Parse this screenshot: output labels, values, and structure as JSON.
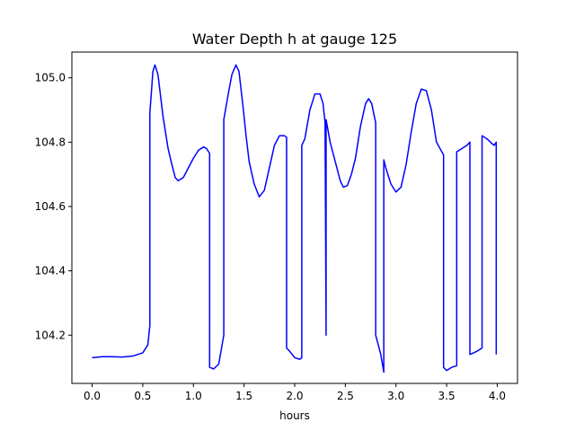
{
  "chart_data": {
    "type": "line",
    "title": "Water Depth h at gauge 125",
    "xlabel": "hours",
    "ylabel": "",
    "xlim": [
      -0.2,
      4.2
    ],
    "ylim": [
      104.05,
      105.08
    ],
    "grid": false,
    "x_ticks": [
      0.0,
      0.5,
      1.0,
      1.5,
      2.0,
      2.5,
      3.0,
      3.5,
      4.0
    ],
    "x_tick_labels": [
      "0.0",
      "0.5",
      "1.0",
      "1.5",
      "2.0",
      "2.5",
      "3.0",
      "3.5",
      "4.0"
    ],
    "y_ticks": [
      104.2,
      104.4,
      104.6,
      104.8,
      105.0
    ],
    "y_tick_labels": [
      "104.2",
      "104.4",
      "104.6",
      "104.8",
      "105.0"
    ],
    "series": [
      {
        "color": "#0000ff",
        "points": [
          [
            0.0,
            104.13
          ],
          [
            0.1,
            104.133
          ],
          [
            0.2,
            104.133
          ],
          [
            0.3,
            104.132
          ],
          [
            0.4,
            104.135
          ],
          [
            0.5,
            104.145
          ],
          [
            0.55,
            104.17
          ],
          [
            0.57,
            104.23
          ],
          [
            0.57,
            104.89
          ],
          [
            0.6,
            105.02
          ],
          [
            0.62,
            105.04
          ],
          [
            0.65,
            105.01
          ],
          [
            0.7,
            104.88
          ],
          [
            0.75,
            104.78
          ],
          [
            0.78,
            104.74
          ],
          [
            0.82,
            104.69
          ],
          [
            0.85,
            104.68
          ],
          [
            0.9,
            104.69
          ],
          [
            0.95,
            104.72
          ],
          [
            1.0,
            104.75
          ],
          [
            1.05,
            104.775
          ],
          [
            1.1,
            104.785
          ],
          [
            1.13,
            104.78
          ],
          [
            1.16,
            104.765
          ],
          [
            1.16,
            104.1
          ],
          [
            1.2,
            104.095
          ],
          [
            1.25,
            104.11
          ],
          [
            1.3,
            104.2
          ],
          [
            1.3,
            104.87
          ],
          [
            1.35,
            104.96
          ],
          [
            1.38,
            105.01
          ],
          [
            1.42,
            105.04
          ],
          [
            1.45,
            105.02
          ],
          [
            1.49,
            104.91
          ],
          [
            1.52,
            104.82
          ],
          [
            1.55,
            104.74
          ],
          [
            1.6,
            104.67
          ],
          [
            1.65,
            104.63
          ],
          [
            1.7,
            104.65
          ],
          [
            1.75,
            104.72
          ],
          [
            1.8,
            104.79
          ],
          [
            1.85,
            104.82
          ],
          [
            1.9,
            104.82
          ],
          [
            1.92,
            104.815
          ],
          [
            1.92,
            104.16
          ],
          [
            1.95,
            104.15
          ],
          [
            2.0,
            104.13
          ],
          [
            2.05,
            104.125
          ],
          [
            2.07,
            104.13
          ],
          [
            2.07,
            104.79
          ],
          [
            2.1,
            104.81
          ],
          [
            2.15,
            104.9
          ],
          [
            2.2,
            104.95
          ],
          [
            2.25,
            104.95
          ],
          [
            2.28,
            104.92
          ],
          [
            2.3,
            104.86
          ],
          [
            2.31,
            104.2
          ],
          [
            2.31,
            104.87
          ],
          [
            2.35,
            104.8
          ],
          [
            2.4,
            104.74
          ],
          [
            2.45,
            104.68
          ],
          [
            2.48,
            104.66
          ],
          [
            2.52,
            104.665
          ],
          [
            2.56,
            104.7
          ],
          [
            2.6,
            104.75
          ],
          [
            2.65,
            104.85
          ],
          [
            2.7,
            104.92
          ],
          [
            2.73,
            104.935
          ],
          [
            2.76,
            104.92
          ],
          [
            2.8,
            104.86
          ],
          [
            2.8,
            104.2
          ],
          [
            2.85,
            104.14
          ],
          [
            2.88,
            104.085
          ],
          [
            2.88,
            104.745
          ],
          [
            2.9,
            104.72
          ],
          [
            2.95,
            104.67
          ],
          [
            3.0,
            104.645
          ],
          [
            3.05,
            104.66
          ],
          [
            3.1,
            104.73
          ],
          [
            3.15,
            104.83
          ],
          [
            3.2,
            104.92
          ],
          [
            3.25,
            104.965
          ],
          [
            3.3,
            104.96
          ],
          [
            3.35,
            104.9
          ],
          [
            3.4,
            104.8
          ],
          [
            3.47,
            104.76
          ],
          [
            3.47,
            104.1
          ],
          [
            3.5,
            104.09
          ],
          [
            3.55,
            104.1
          ],
          [
            3.6,
            104.105
          ],
          [
            3.6,
            104.77
          ],
          [
            3.65,
            104.78
          ],
          [
            3.7,
            104.79
          ],
          [
            3.73,
            104.8
          ],
          [
            3.73,
            104.14
          ],
          [
            3.8,
            104.15
          ],
          [
            3.85,
            104.16
          ],
          [
            3.85,
            104.82
          ],
          [
            3.9,
            104.81
          ],
          [
            3.95,
            104.795
          ],
          [
            3.97,
            104.79
          ],
          [
            3.99,
            104.8
          ],
          [
            3.99,
            104.14
          ]
        ]
      }
    ]
  }
}
